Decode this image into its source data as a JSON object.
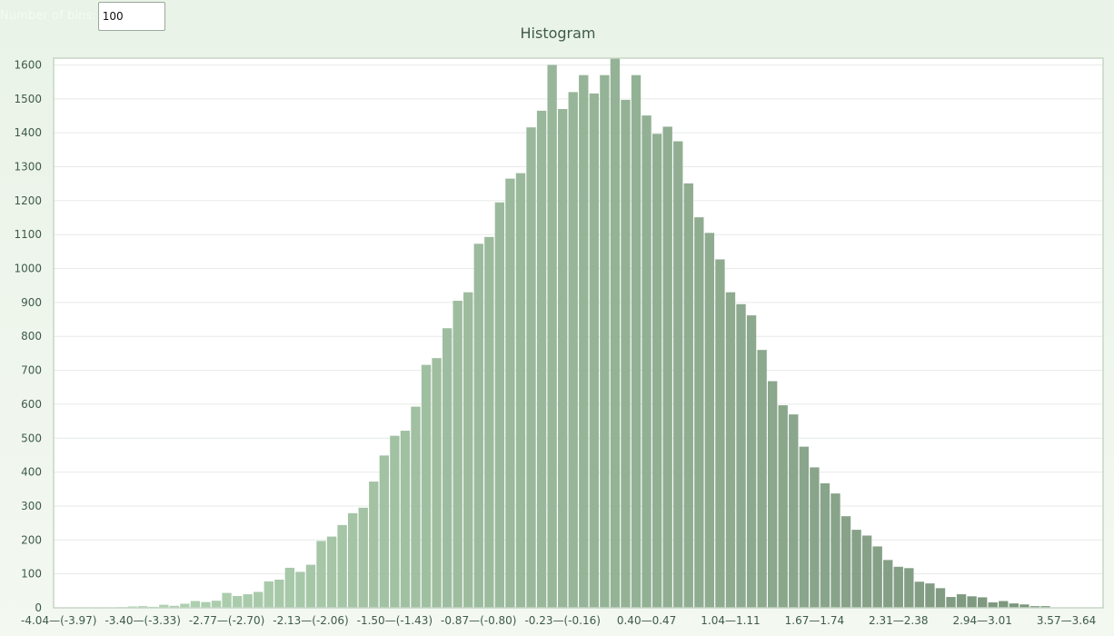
{
  "controls": {
    "bins_label": "Number of bins:",
    "bins_value": "100"
  },
  "chart_data": {
    "type": "bar",
    "title": "Histogram",
    "xlabel": "",
    "ylabel": "",
    "ylim": [
      0,
      1620
    ],
    "yticks": [
      0,
      100,
      200,
      300,
      400,
      500,
      600,
      700,
      800,
      900,
      1000,
      1100,
      1200,
      1300,
      1400,
      1500,
      1600
    ],
    "grid": true,
    "x_tick_labels": [
      "-4.04—(-3.97)",
      "-3.40—(-3.33)",
      "-2.77—(-2.70)",
      "-2.13—(-2.06)",
      "-1.50—(-1.43)",
      "-0.87—(-0.80)",
      "-0.23—(-0.16)",
      "0.40—0.47",
      "1.04—1.11",
      "1.67—1.74",
      "2.31—2.38",
      "2.94—3.01",
      "3.57—3.64"
    ],
    "values": [
      1,
      0,
      0,
      0,
      1,
      1,
      2,
      4,
      5,
      3,
      9,
      6,
      12,
      20,
      17,
      21,
      44,
      35,
      40,
      47,
      78,
      83,
      118,
      106,
      127,
      197,
      210,
      244,
      279,
      295,
      372,
      449,
      507,
      522,
      593,
      716,
      736,
      824,
      905,
      930,
      1073,
      1093,
      1195,
      1265,
      1281,
      1416,
      1465,
      1600,
      1470,
      1520,
      1570,
      1516,
      1570,
      1620,
      1497,
      1570,
      1451,
      1397,
      1418,
      1375,
      1251,
      1151,
      1105,
      1027,
      930,
      895,
      862,
      760,
      668,
      597,
      570,
      475,
      414,
      367,
      337,
      270,
      230,
      213,
      181,
      141,
      121,
      117,
      77,
      72,
      58,
      32,
      40,
      34,
      31,
      16,
      20,
      13,
      10,
      5,
      5,
      1,
      0,
      1,
      0,
      1
    ],
    "colors": {
      "bar_start": "#b5d8b6",
      "bar_end": "#78917a",
      "grid": "#e6ebe6",
      "axis": "#c5d6c5",
      "plot_bg": "#ffffff",
      "text": "#3f5a4a"
    }
  }
}
